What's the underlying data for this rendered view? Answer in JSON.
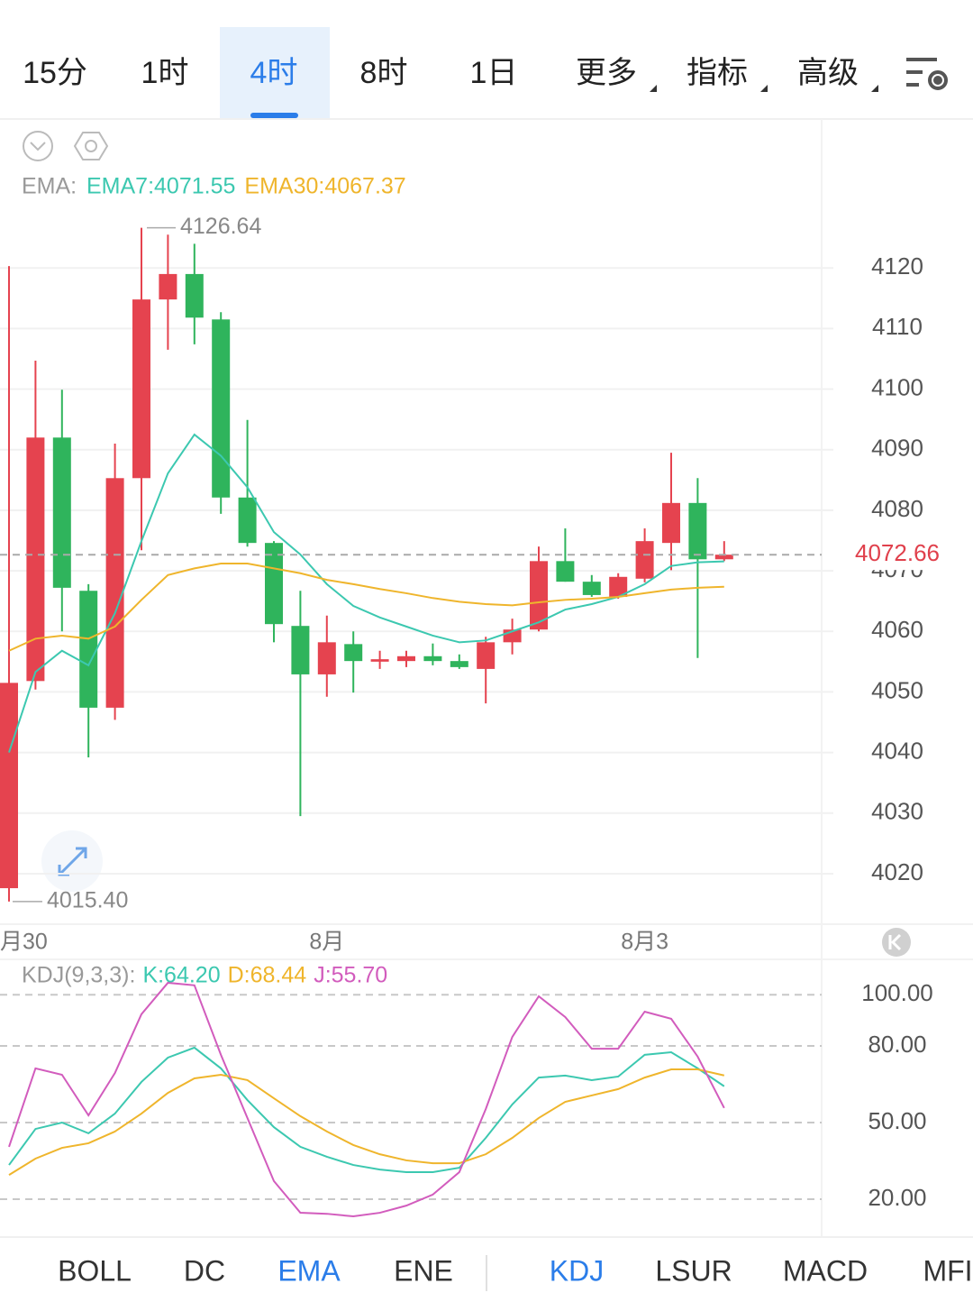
{
  "tabs": {
    "items": [
      "15分",
      "1时",
      "4时",
      "8时",
      "1日",
      "更多",
      "指标",
      "高级"
    ],
    "active": 2
  },
  "chart_data": [
    {
      "type": "candlestick",
      "indicator_label": "EMA:",
      "categories": [
        "月30",
        null,
        null,
        null,
        null,
        null,
        null,
        null,
        null,
        null,
        null,
        null,
        "8月",
        null,
        null,
        null,
        null,
        null,
        null,
        null,
        null,
        null,
        null,
        null,
        "8月3",
        null,
        null,
        null
      ],
      "open": [
        4017.6,
        4051.8,
        4092.0,
        4066.7,
        4047.4,
        4085.3,
        4114.8,
        4119.0,
        4111.5,
        4082.1,
        4074.6,
        4060.9,
        4052.9,
        4057.9,
        4055.0,
        4055.1,
        4055.9,
        4055.1,
        4053.8,
        4058.2,
        4060.3,
        4071.6,
        4068.2,
        4065.7,
        4068.7,
        4074.6,
        4081.2,
        4071.9
      ],
      "high": [
        4120.3,
        4104.7,
        4099.9,
        4067.8,
        4091.0,
        4126.64,
        4125.5,
        4124.0,
        4112.7,
        4094.9,
        4074.9,
        4066.7,
        4062.6,
        4060.0,
        4056.8,
        4056.8,
        4058.0,
        4056.2,
        4059.1,
        4062.1,
        4074.0,
        4077.0,
        4069.3,
        4069.6,
        4077.0,
        4089.5,
        4085.3,
        4074.9
      ],
      "low": [
        4015.4,
        4050.4,
        4060.0,
        4039.2,
        4045.4,
        4073.4,
        4106.5,
        4107.4,
        4079.4,
        4074.0,
        4058.2,
        4029.5,
        4049.2,
        4049.9,
        4053.8,
        4054.1,
        4054.4,
        4053.8,
        4048.1,
        4056.2,
        4060.0,
        4068.2,
        4065.7,
        4065.4,
        4068.1,
        4070.1,
        4055.6,
        4071.6
      ],
      "close": [
        4051.5,
        4092.0,
        4067.2,
        4047.4,
        4085.3,
        4114.8,
        4119.0,
        4111.8,
        4082.1,
        4074.6,
        4061.2,
        4052.9,
        4058.2,
        4055.1,
        4055.4,
        4055.9,
        4055.1,
        4054.1,
        4058.2,
        4060.3,
        4071.6,
        4068.2,
        4066.0,
        4069.0,
        4074.9,
        4081.2,
        4071.9,
        4072.66
      ],
      "up_color": "#e5434f",
      "down_color": "#2fb45c",
      "series": [
        {
          "name": "EMA7",
          "legend_label": "EMA7:4071.55",
          "color": "#3cc8b0",
          "values": [
            4040.0,
            4053.3,
            4056.8,
            4054.4,
            4063.0,
            4074.9,
            4086.1,
            4092.5,
            4089.0,
            4083.8,
            4076.4,
            4072.7,
            4067.8,
            4064.2,
            4062.3,
            4060.8,
            4059.3,
            4058.2,
            4058.5,
            4060.0,
            4061.5,
            4063.6,
            4064.5,
            4065.7,
            4067.8,
            4070.8,
            4071.4,
            4071.55
          ]
        },
        {
          "name": "EMA30",
          "legend_label": "EMA30:4067.37",
          "color": "#efb52c",
          "values": [
            4056.8,
            4058.8,
            4059.3,
            4058.8,
            4060.8,
            4065.2,
            4069.3,
            4070.4,
            4071.2,
            4071.2,
            4070.4,
            4069.6,
            4068.5,
            4067.8,
            4067.0,
            4066.3,
            4065.5,
            4064.9,
            4064.5,
            4064.3,
            4064.8,
            4065.2,
            4065.4,
            4065.7,
            4066.3,
            4066.9,
            4067.2,
            4067.37
          ]
        }
      ],
      "last_price": 4072.66,
      "max_label": 4126.64,
      "min_label": {
        "value": 4015.4,
        "label": "4015.40"
      },
      "ylim": [
        4012.4,
        4143.4
      ],
      "yticks": [
        4020,
        4030,
        4040,
        4050,
        4060,
        4070,
        4080,
        4090,
        4100,
        4110,
        4120
      ],
      "grid": true
    },
    {
      "type": "line",
      "title": "KDJ(9,3,3):",
      "series": [
        {
          "name": "K",
          "legend_label": "K:64.20",
          "color": "#3cc8b0",
          "values": [
            33.4,
            47.5,
            50.0,
            45.8,
            53.5,
            65.9,
            75.4,
            79.3,
            71.2,
            58.8,
            48.2,
            40.5,
            36.6,
            33.4,
            31.6,
            30.6,
            30.6,
            32.3,
            44.0,
            57.1,
            67.6,
            68.4,
            66.6,
            68.0,
            76.5,
            77.5,
            71.2,
            64.2
          ]
        },
        {
          "name": "D",
          "legend_label": "D:68.44",
          "color": "#efb52c",
          "values": [
            29.5,
            35.9,
            40.1,
            41.9,
            46.5,
            53.5,
            61.6,
            67.3,
            68.7,
            66.6,
            59.5,
            52.5,
            46.5,
            41.2,
            37.6,
            35.2,
            34.1,
            34.1,
            37.6,
            44.0,
            51.8,
            58.1,
            60.6,
            63.1,
            67.6,
            70.8,
            70.8,
            68.44
          ]
        },
        {
          "name": "J",
          "legend_label": "J:55.70",
          "color": "#d25cbd",
          "values": [
            40.5,
            71.2,
            68.7,
            52.8,
            69.4,
            92.4,
            104.7,
            103.7,
            76.5,
            51.8,
            27.1,
            14.7,
            14.3,
            13.3,
            14.7,
            17.5,
            21.8,
            30.6,
            55.3,
            83.5,
            99.4,
            91.3,
            78.9,
            78.9,
            93.4,
            90.6,
            75.8,
            55.7
          ]
        }
      ],
      "ylim": [
        5.9,
        113.5
      ],
      "yticks": [
        {
          "value": 20,
          "label": "20.00"
        },
        {
          "value": 50,
          "label": "50.00"
        },
        {
          "value": 80,
          "label": "80.00"
        },
        {
          "value": 100,
          "label": "100.00"
        }
      ],
      "grid": true
    }
  ],
  "indicator_tabs": {
    "items": [
      "BOLL",
      "DC",
      "EMA",
      "ENE",
      "KDJ",
      "LSUR",
      "MACD",
      "MFI"
    ],
    "active": [
      2,
      4
    ]
  }
}
